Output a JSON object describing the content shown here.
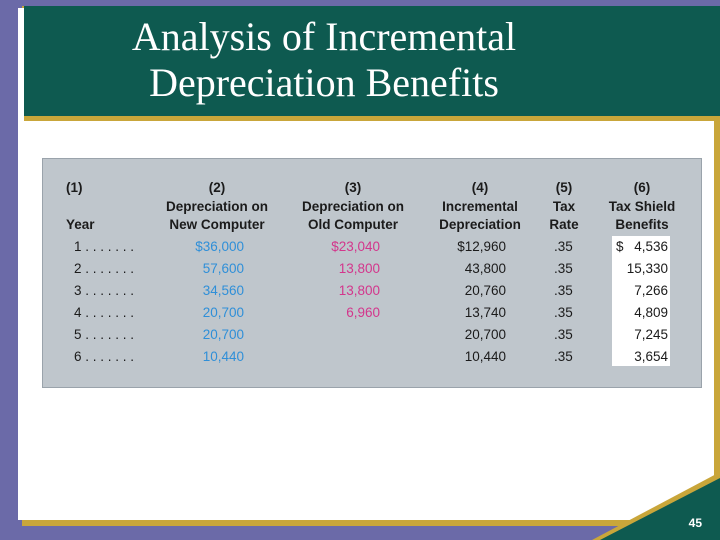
{
  "slide": {
    "title_line1": "Analysis of Incremental",
    "title_line2": "Depreciation Benefits",
    "page_number": "45"
  },
  "table": {
    "headers": [
      {
        "num": "(1)",
        "line1": "",
        "line2": "Year"
      },
      {
        "num": "(2)",
        "line1": "Depreciation on",
        "line2": "New Computer"
      },
      {
        "num": "(3)",
        "line1": "Depreciation on",
        "line2": "Old Computer"
      },
      {
        "num": "(4)",
        "line1": "Incremental",
        "line2": "Depreciation"
      },
      {
        "num": "(5)",
        "line1": "Tax",
        "line2": "Rate"
      },
      {
        "num": "(6)",
        "line1": "Tax Shield",
        "line2": "Benefits"
      }
    ],
    "rows": [
      {
        "year": "1 . . . . . . .",
        "new": "$36,000",
        "old": "$23,040",
        "incr": "$12,960",
        "rate": ".35",
        "dollar": "$",
        "benefit": "4,536"
      },
      {
        "year": "2 . . . . . . .",
        "new": "57,600",
        "old": "13,800",
        "incr": "43,800",
        "rate": ".35",
        "dollar": "",
        "benefit": "15,330"
      },
      {
        "year": "3 . . . . . . .",
        "new": "34,560",
        "old": "13,800",
        "incr": "20,760",
        "rate": ".35",
        "dollar": "",
        "benefit": "7,266"
      },
      {
        "year": "4 . . . . . . .",
        "new": "20,700",
        "old": "6,960",
        "incr": "13,740",
        "rate": ".35",
        "dollar": "",
        "benefit": "4,809"
      },
      {
        "year": "5 . . . . . . .",
        "new": "20,700",
        "old": "",
        "incr": "20,700",
        "rate": ".35",
        "dollar": "",
        "benefit": "7,245"
      },
      {
        "year": "6 . . . . . . .",
        "new": "10,440",
        "old": "",
        "incr": "10,440",
        "rate": ".35",
        "dollar": "",
        "benefit": "3,654"
      }
    ]
  },
  "colors": {
    "title_band": "#0e5a50",
    "accent_gold": "#c9a63a",
    "new_computer_text": "#2f8fd8",
    "old_computer_text": "#d3368c"
  }
}
